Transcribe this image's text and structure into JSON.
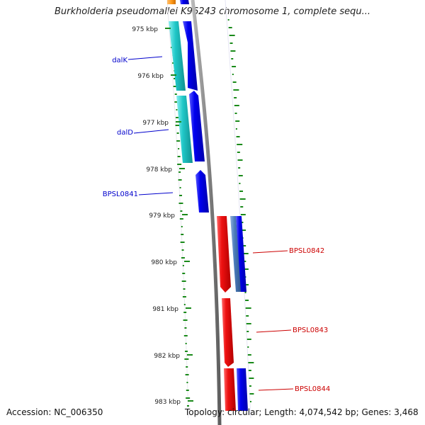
{
  "title": "Burkholderia pseudomallei K96243 chromosome 1, complete sequ...",
  "footer": {
    "accession": "Accession: NC_006350",
    "summary": "Topology: circular; Length: 4,074,542 bp; Genes: 3,468"
  },
  "scale": {
    "unit": "kbp",
    "ticks": [
      {
        "value": 975,
        "label": "975 kbp"
      },
      {
        "value": 976,
        "label": "976 kbp"
      },
      {
        "value": 977,
        "label": "977 kbp"
      },
      {
        "value": 978,
        "label": "978 kbp"
      },
      {
        "value": 979,
        "label": "979 kbp"
      },
      {
        "value": 980,
        "label": "980 kbp"
      },
      {
        "value": 981,
        "label": "981 kbp"
      },
      {
        "value": 982,
        "label": "982 kbp"
      },
      {
        "value": 983,
        "label": "983 kbp"
      }
    ]
  },
  "gene_labels": [
    {
      "name": "dalK",
      "side": "left",
      "color": "#0000cc"
    },
    {
      "name": "dalD",
      "side": "left",
      "color": "#0000cc"
    },
    {
      "name": "BPSL0841",
      "side": "left",
      "color": "#0000cc"
    },
    {
      "name": "BPSL0842",
      "side": "right",
      "color": "#cc0000"
    },
    {
      "name": "BPSL0843",
      "side": "right",
      "color": "#cc0000"
    },
    {
      "name": "BPSL0844",
      "side": "right",
      "color": "#cc0000"
    }
  ],
  "colors": {
    "backbone": "#8a8a8a",
    "gc_skew": "#1a8a1a",
    "cds_reverse": "#0000e6",
    "cds_forward": "#ee1111",
    "cog_cyan": "#20c8c8",
    "cog_steelblue": "#4a7ab8",
    "cog_orange": "#ff9a1a",
    "label_left": "#0000cc",
    "label_right": "#cc0000"
  }
}
